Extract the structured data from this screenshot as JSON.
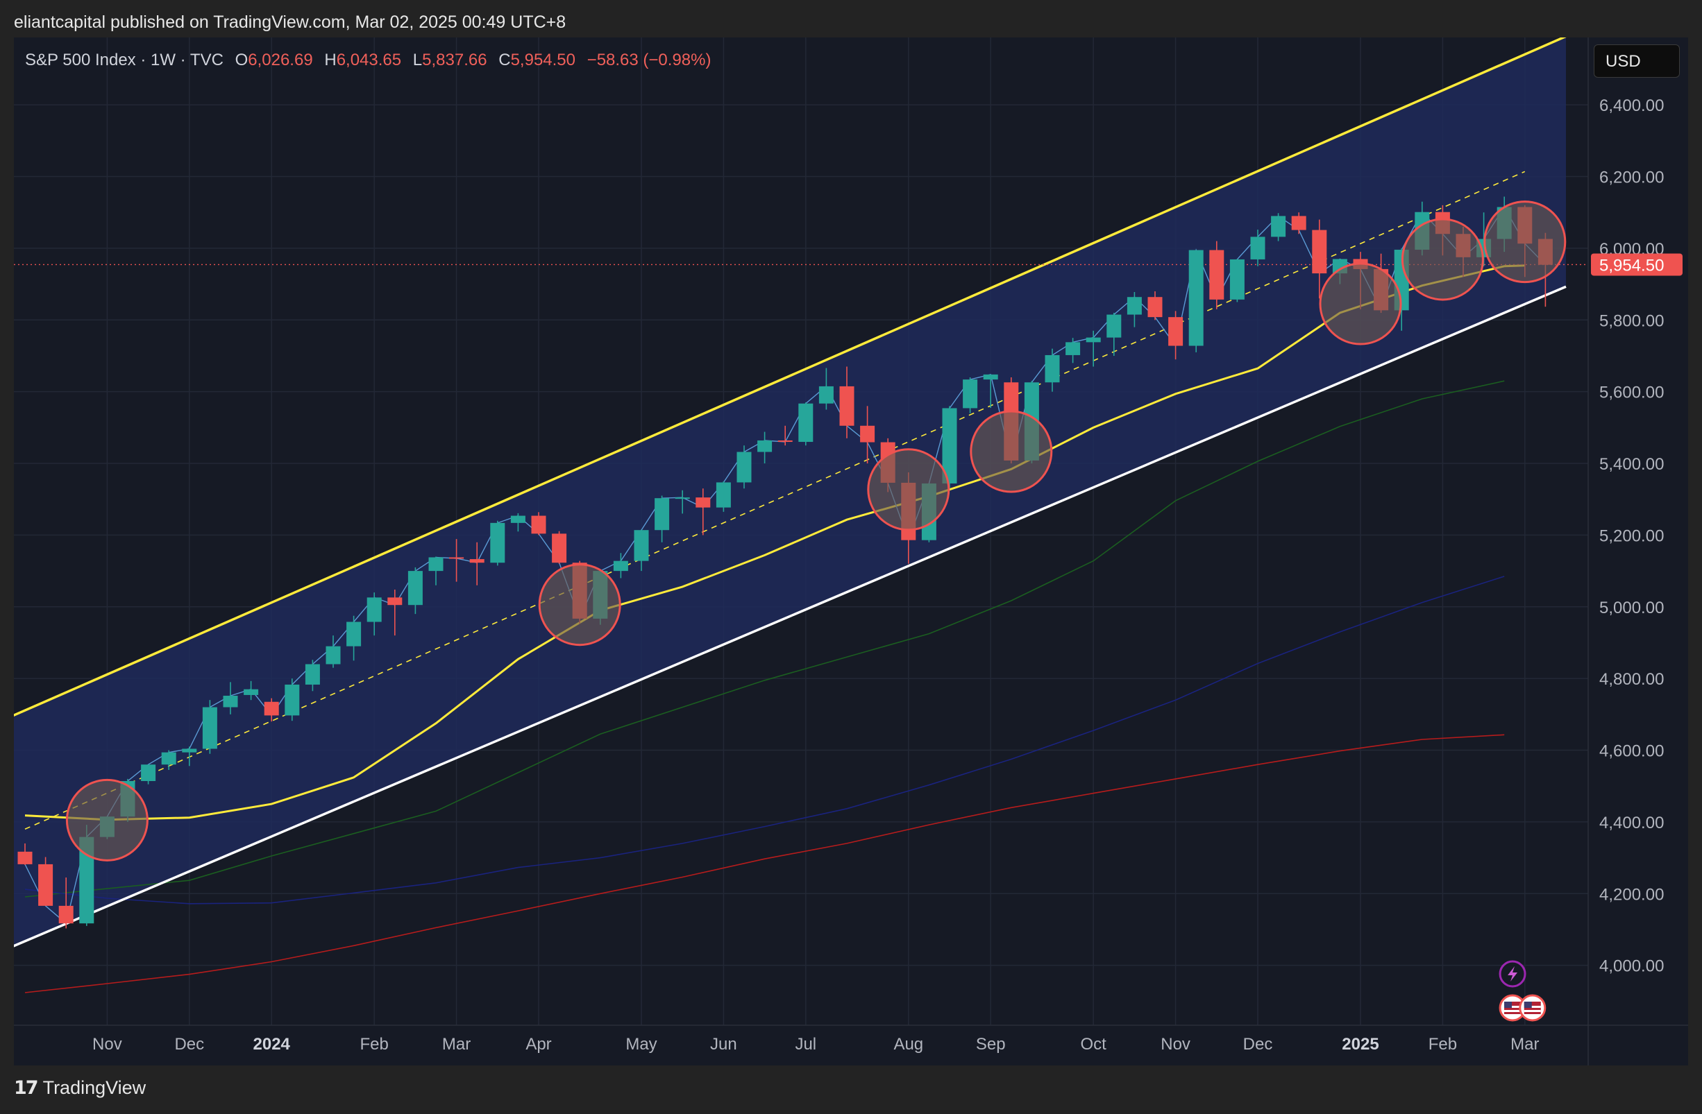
{
  "header": {
    "published_text": "eliantcapital published on TradingView.com, Mar 02, 2025 00:49 UTC+8"
  },
  "legend": {
    "symbol": "S&P 500 Index · 1W · TVC",
    "o_label": "O",
    "o_value": "6,026.69",
    "h_label": "H",
    "h_value": "6,043.65",
    "l_label": "L",
    "l_value": "5,837.66",
    "c_label": "C",
    "c_value": "5,954.50",
    "change": "−58.63 (−0.98%)"
  },
  "currency_button": "USD",
  "price_tag": "5,954.50",
  "footer": {
    "brand": "TradingView"
  },
  "colors": {
    "background": "#161a25",
    "up": "#26a69a",
    "down": "#ef5350",
    "channel": "#ffeb3b",
    "channel_fill": "#1e2a5a",
    "support": "#ffffff",
    "ma20": "#ffeb3b",
    "ma50": "#1b5e20",
    "ma100": "#1a237e",
    "ma200": "#b71c1c"
  },
  "chart_data": {
    "type": "candlestick",
    "interval": "1W",
    "y_axis": {
      "ticks": [
        "6,400.00",
        "6,200.00",
        "6,000.00",
        "5,800.00",
        "5,600.00",
        "5,400.00",
        "5,200.00",
        "5,000.00",
        "4,800.00",
        "4,600.00",
        "4,400.00",
        "4,200.00",
        "4,000.00"
      ],
      "tick_values": [
        6400,
        6200,
        6000,
        5800,
        5600,
        5400,
        5200,
        5000,
        4800,
        4600,
        4400,
        4200,
        4000
      ],
      "ylim": [
        3833,
        6588
      ],
      "scale": "linear"
    },
    "x_axis": {
      "labels": [
        "Nov",
        "Dec",
        "2024",
        "Feb",
        "Mar",
        "Apr",
        "May",
        "Jun",
        "Jul",
        "Aug",
        "Sep",
        "Oct",
        "Nov",
        "Dec",
        "2025",
        "Feb",
        "Mar"
      ],
      "bold": [
        false,
        false,
        true,
        false,
        false,
        false,
        false,
        false,
        false,
        false,
        false,
        false,
        false,
        false,
        true,
        false,
        false
      ],
      "label_bar_index": [
        4,
        8,
        12,
        17,
        21,
        25,
        30,
        34,
        38,
        43,
        47,
        52,
        56,
        60,
        65,
        69,
        73
      ]
    },
    "candles": [
      [
        4317,
        4340,
        4280,
        4282
      ],
      [
        4282,
        4302,
        4180,
        4166
      ],
      [
        4166,
        4245,
        4103,
        4117
      ],
      [
        4117,
        4392,
        4110,
        4358
      ],
      [
        4358,
        4410,
        4352,
        4415
      ],
      [
        4415,
        4520,
        4400,
        4514
      ],
      [
        4514,
        4560,
        4505,
        4560
      ],
      [
        4560,
        4600,
        4545,
        4594
      ],
      [
        4594,
        4610,
        4556,
        4604
      ],
      [
        4604,
        4740,
        4590,
        4720
      ],
      [
        4720,
        4790,
        4700,
        4752
      ],
      [
        4754,
        4793,
        4740,
        4770
      ],
      [
        4735,
        4745,
        4680,
        4697
      ],
      [
        4697,
        4800,
        4682,
        4783
      ],
      [
        4783,
        4852,
        4765,
        4840
      ],
      [
        4840,
        4920,
        4830,
        4890
      ],
      [
        4890,
        4975,
        4850,
        4958
      ],
      [
        4958,
        5040,
        4920,
        5026
      ],
      [
        5026,
        5048,
        4920,
        5005
      ],
      [
        5005,
        5110,
        4980,
        5100
      ],
      [
        5100,
        5140,
        5060,
        5138
      ],
      [
        5138,
        5189,
        5070,
        5135
      ],
      [
        5133,
        5180,
        5060,
        5123
      ],
      [
        5123,
        5240,
        5115,
        5234
      ],
      [
        5234,
        5261,
        5210,
        5254
      ],
      [
        5254,
        5264,
        5200,
        5204
      ],
      [
        5204,
        5211,
        5120,
        5123
      ],
      [
        5123,
        5128,
        4953,
        4967
      ],
      [
        4967,
        5100,
        4950,
        5100
      ],
      [
        5100,
        5150,
        5080,
        5128
      ],
      [
        5128,
        5215,
        5100,
        5214
      ],
      [
        5214,
        5310,
        5180,
        5303
      ],
      [
        5303,
        5325,
        5260,
        5305
      ],
      [
        5305,
        5330,
        5200,
        5277
      ],
      [
        5277,
        5350,
        5265,
        5347
      ],
      [
        5347,
        5450,
        5330,
        5432
      ],
      [
        5432,
        5488,
        5400,
        5464
      ],
      [
        5464,
        5505,
        5450,
        5460
      ],
      [
        5460,
        5570,
        5450,
        5567
      ],
      [
        5567,
        5666,
        5550,
        5615
      ],
      [
        5615,
        5670,
        5470,
        5505
      ],
      [
        5505,
        5560,
        5400,
        5459
      ],
      [
        5459,
        5470,
        5320,
        5346
      ],
      [
        5346,
        5375,
        5120,
        5186
      ],
      [
        5186,
        5340,
        5180,
        5344
      ],
      [
        5344,
        5560,
        5330,
        5554
      ],
      [
        5554,
        5640,
        5540,
        5634
      ],
      [
        5634,
        5645,
        5555,
        5648
      ],
      [
        5626,
        5640,
        5400,
        5408
      ],
      [
        5408,
        5630,
        5400,
        5626
      ],
      [
        5626,
        5720,
        5600,
        5702
      ],
      [
        5702,
        5750,
        5680,
        5738
      ],
      [
        5738,
        5770,
        5670,
        5751
      ],
      [
        5751,
        5820,
        5700,
        5815
      ],
      [
        5815,
        5878,
        5780,
        5864
      ],
      [
        5864,
        5880,
        5800,
        5808
      ],
      [
        5808,
        5825,
        5690,
        5728
      ],
      [
        5728,
        5990,
        5710,
        5995
      ],
      [
        5995,
        6020,
        5830,
        5857
      ],
      [
        5857,
        5970,
        5850,
        5969
      ],
      [
        5969,
        6052,
        5950,
        6032
      ],
      [
        6032,
        6098,
        6020,
        6090
      ],
      [
        6090,
        6100,
        6040,
        6051
      ],
      [
        6051,
        6080,
        5860,
        5930
      ],
      [
        5930,
        5970,
        5900,
        5970
      ],
      [
        5970,
        5990,
        5830,
        5942
      ],
      [
        5942,
        5985,
        5820,
        5827
      ],
      [
        5827,
        6000,
        5770,
        5996
      ],
      [
        5996,
        6130,
        5980,
        6101
      ],
      [
        6101,
        6120,
        5980,
        6040
      ],
      [
        6040,
        6060,
        5920,
        5975
      ],
      [
        5975,
        6100,
        5950,
        6026
      ],
      [
        6026,
        6144,
        5990,
        6115
      ],
      [
        6115,
        6120,
        5920,
        6013
      ],
      [
        6026,
        6043,
        5837,
        5954
      ]
    ],
    "moving_average_lines": [
      {
        "period": 20,
        "color": "#ffeb3b",
        "values": [
          [
            0,
            4418
          ],
          [
            4,
            4406
          ],
          [
            8,
            4412
          ],
          [
            12,
            4450
          ],
          [
            16,
            4524
          ],
          [
            20,
            4675
          ],
          [
            24,
            4854
          ],
          [
            28,
            4990
          ],
          [
            32,
            5056
          ],
          [
            36,
            5144
          ],
          [
            40,
            5243
          ],
          [
            44,
            5308
          ],
          [
            48,
            5384
          ],
          [
            52,
            5500
          ],
          [
            56,
            5594
          ],
          [
            60,
            5665
          ],
          [
            64,
            5820
          ],
          [
            68,
            5896
          ],
          [
            72,
            5950
          ],
          [
            73,
            5952
          ]
        ]
      },
      {
        "period": 50,
        "color": "#1b5e20",
        "values": [
          [
            0,
            4191
          ],
          [
            8,
            4237
          ],
          [
            12,
            4305
          ],
          [
            20,
            4430
          ],
          [
            28,
            4645
          ],
          [
            36,
            4795
          ],
          [
            44,
            4925
          ],
          [
            48,
            5017
          ],
          [
            52,
            5128
          ],
          [
            56,
            5296
          ],
          [
            60,
            5406
          ],
          [
            64,
            5503
          ],
          [
            68,
            5580
          ],
          [
            72,
            5630
          ]
        ]
      },
      {
        "period": 100,
        "color": "#1a237e",
        "values": [
          [
            0,
            4212
          ],
          [
            4,
            4187
          ],
          [
            8,
            4172
          ],
          [
            12,
            4174
          ],
          [
            16,
            4202
          ],
          [
            20,
            4230
          ],
          [
            24,
            4273
          ],
          [
            28,
            4300
          ],
          [
            32,
            4340
          ],
          [
            36,
            4387
          ],
          [
            40,
            4437
          ],
          [
            44,
            4503
          ],
          [
            48,
            4575
          ],
          [
            52,
            4655
          ],
          [
            56,
            4740
          ],
          [
            60,
            4842
          ],
          [
            64,
            4930
          ],
          [
            68,
            5012
          ],
          [
            72,
            5085
          ]
        ]
      },
      {
        "period": 200,
        "color": "#b71c1c",
        "values": [
          [
            0,
            3924
          ],
          [
            4,
            3949
          ],
          [
            8,
            3975
          ],
          [
            12,
            4010
          ],
          [
            16,
            4055
          ],
          [
            20,
            4105
          ],
          [
            24,
            4152
          ],
          [
            28,
            4200
          ],
          [
            32,
            4246
          ],
          [
            36,
            4297
          ],
          [
            40,
            4340
          ],
          [
            44,
            4392
          ],
          [
            48,
            4440
          ],
          [
            52,
            4480
          ],
          [
            56,
            4520
          ],
          [
            60,
            4560
          ],
          [
            64,
            4598
          ],
          [
            68,
            4630
          ],
          [
            72,
            4643
          ]
        ]
      }
    ],
    "drawings": {
      "channel_upper": {
        "color": "#ffeb3b",
        "points": [
          [
            -1,
            4686
          ],
          [
            75,
            6591
          ]
        ]
      },
      "channel_mid_dashed": {
        "color": "#ffeb3b",
        "points": [
          [
            0,
            4380
          ],
          [
            73,
            6214
          ]
        ]
      },
      "support_line": {
        "color": "#ffffff",
        "points": [
          [
            -1,
            4043
          ],
          [
            75,
            5893
          ]
        ]
      },
      "circles": [
        [
          4,
          4405
        ],
        [
          27,
          5006
        ],
        [
          43,
          5327
        ],
        [
          48,
          5433
        ],
        [
          65,
          5845
        ],
        [
          69,
          5969
        ],
        [
          73,
          6018
        ]
      ]
    },
    "last_price_line": 5954.5
  }
}
